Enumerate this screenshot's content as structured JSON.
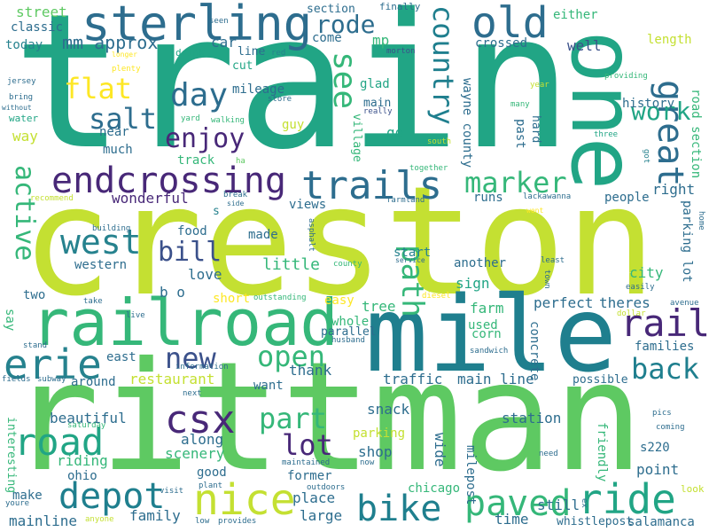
{
  "colors": {
    "background": "#ffffff",
    "palette": [
      "#21a585",
      "#1f7f8e",
      "#2d6d8e",
      "#c4e032",
      "#5ec962",
      "#35b779",
      "#3b518b",
      "#482878",
      "#fde725",
      "#26828e"
    ]
  },
  "words": {
    "train": "train",
    "creston": "creston",
    "rittman": "rittman",
    "mile": "mile",
    "railroad": "railroad",
    "one": "one",
    "sterling": "sterling",
    "old": "old",
    "endcrossing": "endcrossing",
    "trails": "trails",
    "nice": "nice",
    "bike": "bike",
    "ride": "ride",
    "road": "road",
    "depot": "depot",
    "csx": "csx",
    "erie": "erie",
    "west": "west",
    "paved": "paved",
    "rail": "rail",
    "great": "great",
    "day": "day",
    "salt": "salt",
    "flat": "flat",
    "enjoy": "enjoy",
    "see": "see",
    "country": "country",
    "path": "path",
    "marker": "marker",
    "back": "back",
    "open": "open",
    "part": "part",
    "lot": "lot",
    "new": "new",
    "bill": "bill",
    "active": "active",
    "work": "work",
    "rode": "rode",
    "mm_approx": "mm approx",
    "street": "street",
    "classic": "classic",
    "today": "today",
    "car": "car",
    "mp": "mp",
    "history": "history",
    "wayne_county": "wayne county",
    "crossed": "crossed",
    "well": "well",
    "either": "either",
    "length": "length",
    "road_section": "road section",
    "mileage": "mileage",
    "near": "near",
    "much": "much",
    "way": "way",
    "drink": "drink",
    "cut": "cut",
    "line": "line",
    "section": "section",
    "come": "come",
    "finally": "finally",
    "glad": "glad",
    "main": "main",
    "guy": "guy",
    "large": "large",
    "hard": "hard",
    "past": "past",
    "go": "go",
    "village": "village",
    "track": "track",
    "wonderful": "wonderful",
    "food": "food",
    "made": "made",
    "little": "little",
    "love": "love",
    "western": "western",
    "b_o": "b o",
    "two": "two",
    "say": "say",
    "short": "short",
    "easy": "easy",
    "tree": "tree",
    "whole": "whole",
    "parallel": "parallel",
    "farm": "farm",
    "corn": "corn",
    "used": "used",
    "perfect": "perfect",
    "theres": "theres",
    "concrete": "concrete",
    "families": "families",
    "right": "right",
    "parking_lot": "parking lot",
    "city": "city",
    "people": "people",
    "runs": "runs",
    "another": "another",
    "sign": "sign",
    "start": "start",
    "views": "views",
    "east": "east",
    "around": "around",
    "restaurant": "restaurant",
    "thank": "thank",
    "want": "want",
    "traffic": "traffic",
    "main_line": "main line",
    "possible": "possible",
    "snack": "snack",
    "station": "station",
    "beautiful": "beautiful",
    "along": "along",
    "riding": "riding",
    "scenery": "scenery",
    "ohio": "ohio",
    "good": "good",
    "former": "former",
    "place": "place",
    "family": "family",
    "mainline": "mainline",
    "shop": "shop",
    "wide": "wide",
    "milepost": "milepost",
    "parking": "parking",
    "chicago": "chicago",
    "still": "still",
    "time": "time",
    "friendly": "friendly",
    "point": "point",
    "s220": "s220",
    "salamanca": "salamanca",
    "interesting": "interesting",
    "make": "make",
    "youre": "youre",
    "whistlepost": "whistlepost",
    "jersey": "jersey",
    "bring": "bring",
    "without": "without",
    "water": "water",
    "longer": "longer",
    "plenty": "plenty",
    "yard": "yard",
    "walking": "walking",
    "store": "store",
    "red": "red",
    "morton": "morton",
    "seen": "seen",
    "really": "really",
    "providing": "providing",
    "year": "year",
    "many": "many",
    "three": "three",
    "got": "got",
    "south": "south",
    "together": "together",
    "recommend": "recommend",
    "break": "break",
    "side": "side",
    "ha": "ha",
    "s": "s",
    "farmland": "farmland",
    "lackawanna": "lackawanna",
    "went": "went",
    "home": "home",
    "building": "building",
    "asphalt": "asphalt",
    "service": "service",
    "county": "county",
    "town": "town",
    "least": "least",
    "freight": "freight",
    "easily": "easily",
    "take": "take",
    "outstanding": "outstanding",
    "diesel": "diesel",
    "live": "live",
    "avenue": "avenue",
    "dollar": "dollar",
    "stand": "stand",
    "husband": "husband",
    "sandwich": "sandwich",
    "information": "information",
    "fields": "fields",
    "subway": "subway",
    "next": "next",
    "saturday": "saturday",
    "maintained": "maintained",
    "now": "now",
    "need": "need",
    "pics": "pics",
    "coming": "coming",
    "visit": "visit",
    "plant": "plant",
    "outdoors": "outdoors",
    "anyone": "anyone",
    "low": "low",
    "provides": "provides",
    "ex": "ex",
    "look": "look"
  }
}
